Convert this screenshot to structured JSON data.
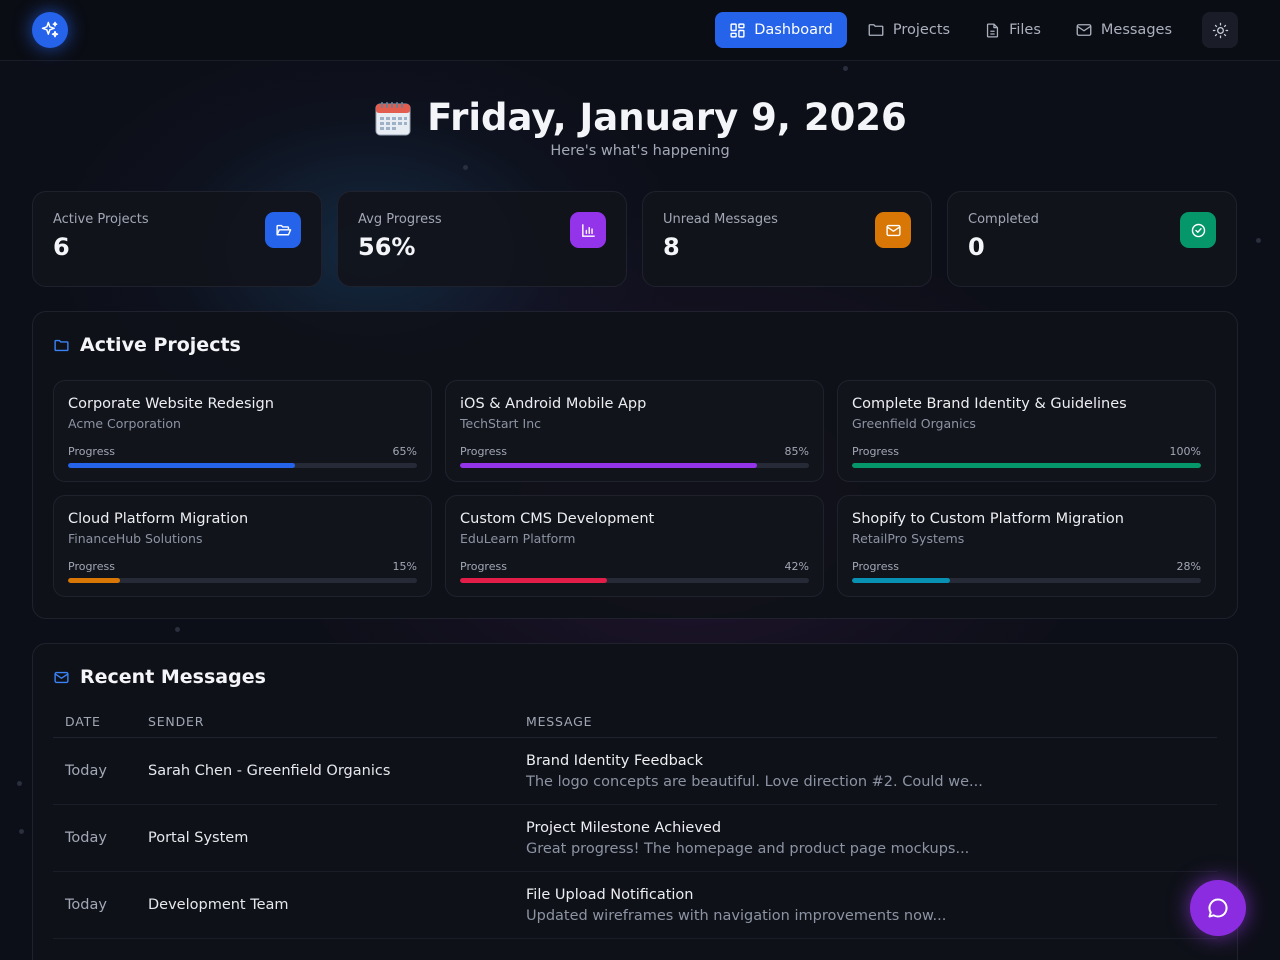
{
  "nav": {
    "items": [
      {
        "label": "Dashboard",
        "icon": "dashboard-grid-icon",
        "active": true
      },
      {
        "label": "Projects",
        "icon": "folder-icon",
        "active": false
      },
      {
        "label": "Files",
        "icon": "file-icon",
        "active": false
      },
      {
        "label": "Messages",
        "icon": "mail-icon",
        "active": false
      }
    ],
    "theme_icon": "sun-icon"
  },
  "header": {
    "title": "Friday, January 9, 2026",
    "subtitle": "Here's what's happening"
  },
  "stats": [
    {
      "label": "Active Projects",
      "value": "6",
      "icon": "folder-open-icon",
      "color": "#2563eb"
    },
    {
      "label": "Avg Progress",
      "value": "56%",
      "icon": "bar-chart-icon",
      "color": "#9333ea"
    },
    {
      "label": "Unread Messages",
      "value": "8",
      "icon": "mail-icon",
      "color": "#d97706"
    },
    {
      "label": "Completed",
      "value": "0",
      "icon": "check-circle-icon",
      "color": "#059669"
    }
  ],
  "projects": {
    "title": "Active Projects",
    "progress_label": "Progress",
    "items": [
      {
        "name": "Corporate Website Redesign",
        "client": "Acme Corporation",
        "progress": 65,
        "progress_text": "65%",
        "color": "#2563eb"
      },
      {
        "name": "iOS & Android Mobile App",
        "client": "TechStart Inc",
        "progress": 85,
        "progress_text": "85%",
        "color": "#9333ea"
      },
      {
        "name": "Complete Brand Identity & Guidelines",
        "client": "Greenfield Organics",
        "progress": 100,
        "progress_text": "100%",
        "color": "#059669"
      },
      {
        "name": "Cloud Platform Migration",
        "client": "FinanceHub Solutions",
        "progress": 15,
        "progress_text": "15%",
        "color": "#d97706"
      },
      {
        "name": "Custom CMS Development",
        "client": "EduLearn Platform",
        "progress": 42,
        "progress_text": "42%",
        "color": "#e11d48"
      },
      {
        "name": "Shopify to Custom Platform Migration",
        "client": "RetailPro Systems",
        "progress": 28,
        "progress_text": "28%",
        "color": "#0891b2"
      }
    ]
  },
  "messages": {
    "title": "Recent Messages",
    "columns": {
      "date": "DATE",
      "sender": "SENDER",
      "message": "MESSAGE"
    },
    "rows": [
      {
        "date": "Today",
        "sender": "Sarah Chen - Greenfield Organics",
        "subject": "Brand Identity Feedback",
        "preview": "The logo concepts are beautiful. Love direction #2. Could we..."
      },
      {
        "date": "Today",
        "sender": "Portal System",
        "subject": "Project Milestone Achieved",
        "preview": "Great progress! The homepage and product page mockups..."
      },
      {
        "date": "Today",
        "sender": "Development Team",
        "subject": "File Upload Notification",
        "preview": "Updated wireframes with navigation improvements now..."
      }
    ]
  }
}
